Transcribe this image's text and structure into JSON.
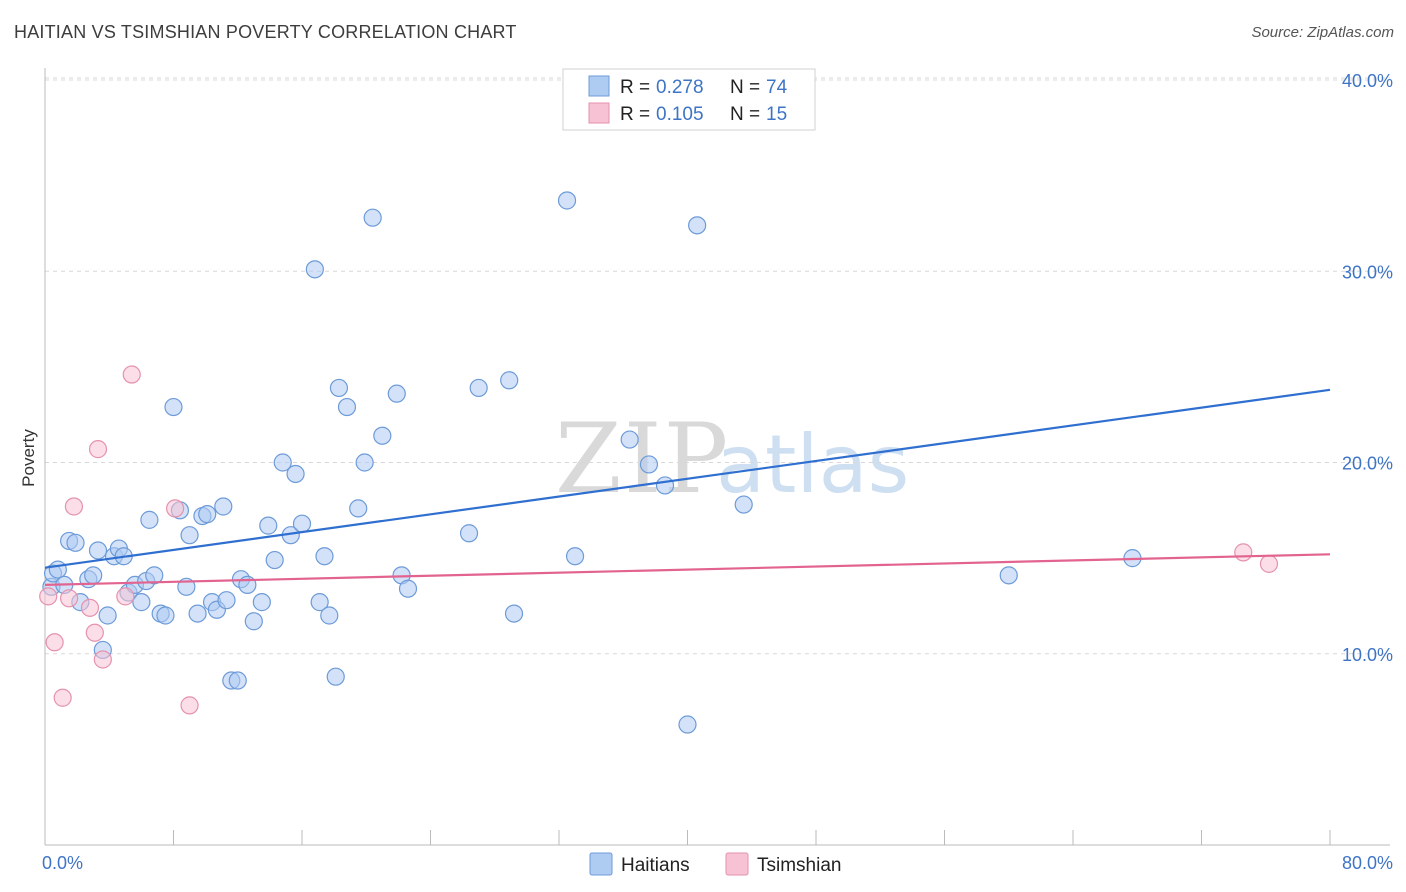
{
  "title": "HAITIAN VS TSIMSHIAN POVERTY CORRELATION CHART",
  "source": "Source: ZipAtlas.com",
  "watermark": {
    "zip": "ZIP",
    "atlas": "atlas"
  },
  "colors": {
    "haitians_fill": "#aecbf2",
    "haitians_stroke": "#6d9bd8",
    "haitians_line": "#2f6fd0",
    "tsimshian_fill": "#f7c3d4",
    "tsimshian_stroke": "#e592ae",
    "tsimshian_line": "#e2638f",
    "axis_label": "#3e74c6",
    "grid": "#d8d8d8"
  },
  "legend": {
    "row1": {
      "r_label": "R = ",
      "r_value": "0.278",
      "n_label": "N = ",
      "n_value": "74"
    },
    "row2": {
      "r_label": "R = ",
      "r_value": "0.105",
      "n_label": "N = ",
      "n_value": "15"
    }
  },
  "bottom_legend": {
    "haitians": "Haitians",
    "tsimshian": "Tsimshian"
  },
  "chart_data": {
    "type": "scatter",
    "title": "HAITIAN VS TSIMSHIAN POVERTY CORRELATION CHART",
    "xlabel": "",
    "ylabel": "Poverty",
    "xlim": [
      0,
      80
    ],
    "ylim": [
      0,
      40
    ],
    "x_tick_labels": [
      "0.0%",
      "80.0%"
    ],
    "y_ticks": [
      10,
      20,
      30,
      40
    ],
    "y_tick_labels": [
      "10.0%",
      "20.0%",
      "30.0%",
      "40.0%"
    ],
    "grid": "horizontal dashed",
    "legend_position": "top-center",
    "series": [
      {
        "name": "Haitians",
        "r": 0.278,
        "n": 74,
        "trend": {
          "x": [
            0,
            80
          ],
          "y": [
            14.5,
            23.8
          ]
        },
        "points": [
          [
            0.4,
            13.5
          ],
          [
            0.5,
            14.2
          ],
          [
            0.8,
            14.4
          ],
          [
            1.2,
            13.6
          ],
          [
            1.5,
            15.9
          ],
          [
            1.9,
            15.8
          ],
          [
            2.2,
            12.7
          ],
          [
            2.7,
            13.9
          ],
          [
            3.0,
            14.1
          ],
          [
            3.3,
            15.4
          ],
          [
            3.6,
            10.2
          ],
          [
            3.9,
            12.0
          ],
          [
            4.3,
            15.1
          ],
          [
            4.6,
            15.5
          ],
          [
            4.9,
            15.1
          ],
          [
            5.2,
            13.2
          ],
          [
            5.6,
            13.6
          ],
          [
            6.0,
            12.7
          ],
          [
            6.3,
            13.8
          ],
          [
            6.5,
            17.0
          ],
          [
            6.8,
            14.1
          ],
          [
            7.2,
            12.1
          ],
          [
            7.5,
            12.0
          ],
          [
            8.0,
            22.9
          ],
          [
            8.4,
            17.5
          ],
          [
            8.8,
            13.5
          ],
          [
            9.0,
            16.2
          ],
          [
            9.5,
            12.1
          ],
          [
            9.8,
            17.2
          ],
          [
            10.1,
            17.3
          ],
          [
            10.4,
            12.7
          ],
          [
            10.7,
            12.3
          ],
          [
            11.1,
            17.7
          ],
          [
            11.3,
            12.8
          ],
          [
            11.6,
            8.6
          ],
          [
            12.0,
            8.6
          ],
          [
            12.2,
            13.9
          ],
          [
            12.6,
            13.6
          ],
          [
            13.0,
            11.7
          ],
          [
            13.5,
            12.7
          ],
          [
            13.9,
            16.7
          ],
          [
            14.3,
            14.9
          ],
          [
            14.8,
            20.0
          ],
          [
            15.3,
            16.2
          ],
          [
            15.6,
            19.4
          ],
          [
            16.0,
            16.8
          ],
          [
            16.8,
            30.1
          ],
          [
            17.1,
            12.7
          ],
          [
            17.4,
            15.1
          ],
          [
            17.7,
            12.0
          ],
          [
            18.1,
            8.8
          ],
          [
            18.3,
            23.9
          ],
          [
            18.8,
            22.9
          ],
          [
            19.5,
            17.6
          ],
          [
            19.9,
            20.0
          ],
          [
            20.4,
            32.8
          ],
          [
            21.0,
            21.4
          ],
          [
            21.9,
            23.6
          ],
          [
            22.2,
            14.1
          ],
          [
            22.6,
            13.4
          ],
          [
            26.4,
            16.3
          ],
          [
            27.0,
            23.9
          ],
          [
            28.9,
            24.3
          ],
          [
            29.2,
            12.1
          ],
          [
            32.5,
            33.7
          ],
          [
            33.0,
            15.1
          ],
          [
            36.4,
            21.2
          ],
          [
            37.6,
            19.9
          ],
          [
            38.6,
            18.8
          ],
          [
            40.0,
            6.3
          ],
          [
            40.6,
            32.4
          ],
          [
            43.5,
            17.8
          ],
          [
            60.0,
            14.1
          ],
          [
            67.7,
            15.0
          ]
        ]
      },
      {
        "name": "Tsimshian",
        "r": 0.105,
        "n": 15,
        "trend": {
          "x": [
            0,
            80
          ],
          "y": [
            13.6,
            15.2
          ]
        },
        "points": [
          [
            0.2,
            13.0
          ],
          [
            0.6,
            10.6
          ],
          [
            1.1,
            7.7
          ],
          [
            1.5,
            12.9
          ],
          [
            1.8,
            17.7
          ],
          [
            2.8,
            12.4
          ],
          [
            3.1,
            11.1
          ],
          [
            3.3,
            20.7
          ],
          [
            3.6,
            9.7
          ],
          [
            5.0,
            13.0
          ],
          [
            5.4,
            24.6
          ],
          [
            8.1,
            17.6
          ],
          [
            9.0,
            7.3
          ],
          [
            74.6,
            15.3
          ],
          [
            76.2,
            14.7
          ]
        ]
      }
    ]
  }
}
